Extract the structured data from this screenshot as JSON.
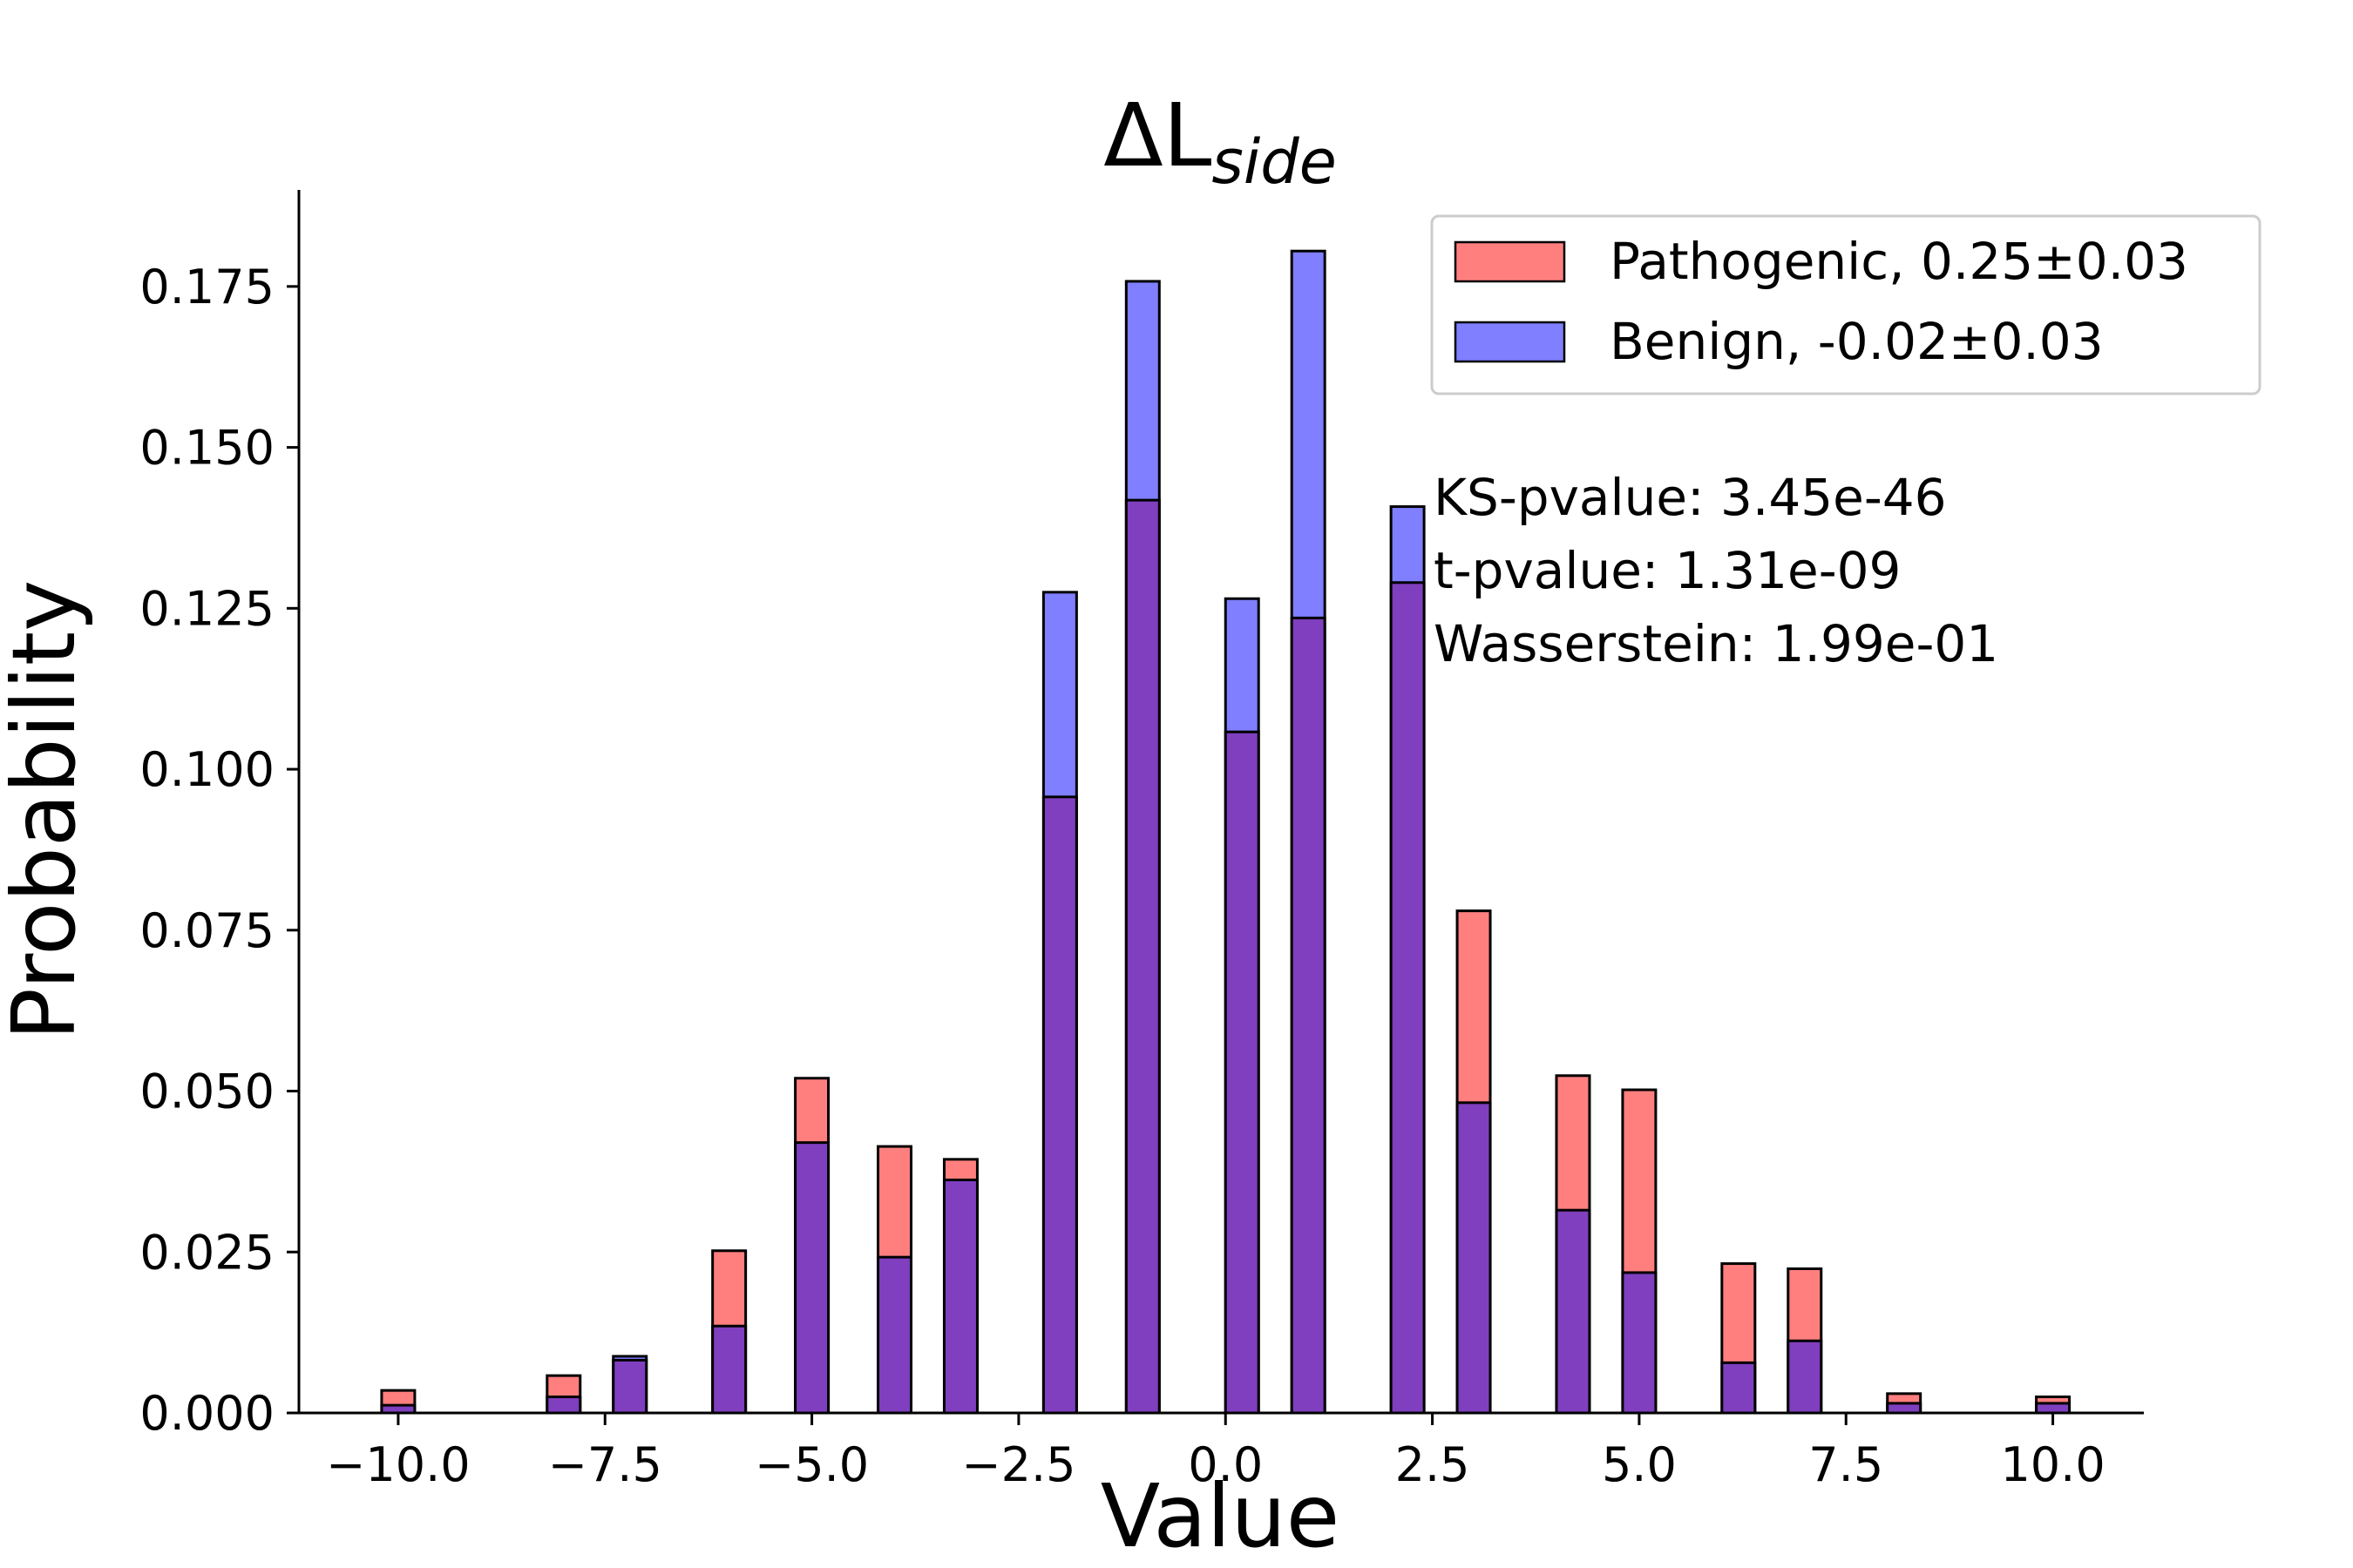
{
  "chart_data": {
    "type": "bar",
    "title": {
      "main": "ΔL",
      "subscript": "side"
    },
    "xlabel": "Value",
    "ylabel": "Probability",
    "xlim": [
      -11.2,
      11.1
    ],
    "ylim": [
      0,
      0.19
    ],
    "xticks": [
      -10.0,
      -7.5,
      -5.0,
      -2.5,
      0.0,
      2.5,
      5.0,
      7.5,
      10.0
    ],
    "xtick_labels": [
      "−10.0",
      "−7.5",
      "−5.0",
      "−2.5",
      "0.0",
      "2.5",
      "5.0",
      "7.5",
      "10.0"
    ],
    "yticks": [
      0.0,
      0.025,
      0.05,
      0.075,
      0.1,
      0.125,
      0.15,
      0.175
    ],
    "ytick_labels": [
      "0.000",
      "0.025",
      "0.050",
      "0.075",
      "0.100",
      "0.125",
      "0.150",
      "0.175"
    ],
    "grid": false,
    "legend_position": "top-right",
    "colors": {
      "pathogenic": "#ff7f7f",
      "benign": "#7f7fff",
      "overlap": "#7f3fbf",
      "edge": "#000000"
    },
    "bar_width": 0.4,
    "bin_centers": [
      -10.0,
      -8.0,
      -7.2,
      -6.0,
      -5.0,
      -4.0,
      -3.2,
      -2.0,
      -1.0,
      0.2,
      1.0,
      2.2,
      3.0,
      4.2,
      5.0,
      6.2,
      7.0,
      8.2,
      10.0
    ],
    "series": [
      {
        "name": "Pathogenic, 0.25±0.03",
        "values": [
          0.0035,
          0.0058,
          0.0082,
          0.0252,
          0.052,
          0.0414,
          0.0394,
          0.0957,
          0.1418,
          0.1058,
          0.1235,
          0.129,
          0.078,
          0.0524,
          0.0502,
          0.0232,
          0.0224,
          0.003,
          0.0025
        ]
      },
      {
        "name": "Benign, -0.02±0.03",
        "values": [
          0.0012,
          0.0025,
          0.0088,
          0.0135,
          0.042,
          0.0242,
          0.0362,
          0.1275,
          0.1758,
          0.1265,
          0.1805,
          0.1408,
          0.0482,
          0.0315,
          0.0218,
          0.0078,
          0.0112,
          0.0015,
          0.0015
        ]
      }
    ],
    "annotations": [
      "KS-pvalue: 3.45e-46",
      "t-pvalue: 1.31e-09",
      "Wasserstein: 1.99e-01"
    ]
  }
}
